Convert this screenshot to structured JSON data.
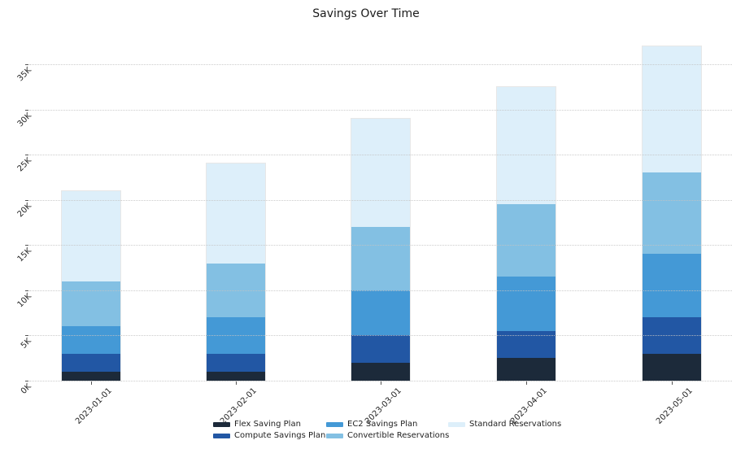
{
  "chart_data": {
    "type": "bar",
    "stacked": true,
    "title": "Savings Over Time",
    "categories": [
      "2023-01-01",
      "2023-02-01",
      "2023-03-01",
      "2023-04-01",
      "2023-05-01"
    ],
    "series": [
      {
        "name": "Flex Saving Plan",
        "color": "#1c2a3a",
        "values": [
          1000,
          1000,
          2000,
          2500,
          3000
        ]
      },
      {
        "name": "Compute Savings Plan",
        "color": "#2257a4",
        "values": [
          2000,
          2000,
          3000,
          3000,
          4000
        ]
      },
      {
        "name": "EC2 Savings Plan",
        "color": "#4499d6",
        "values": [
          3000,
          4000,
          5000,
          6000,
          7000
        ]
      },
      {
        "name": "Convertible Reservations",
        "color": "#83c0e3",
        "values": [
          5000,
          6000,
          7000,
          8000,
          9000
        ]
      },
      {
        "name": "Standard Reservations",
        "color": "#ddeffa",
        "values": [
          10000,
          11000,
          12000,
          13000,
          14000
        ]
      }
    ],
    "totals": [
      21000,
      24000,
      29000,
      32500,
      37000
    ],
    "yticks": [
      {
        "value": 0,
        "label": "0K"
      },
      {
        "value": 5000,
        "label": "5K"
      },
      {
        "value": 10000,
        "label": "10K"
      },
      {
        "value": 15000,
        "label": "15K"
      },
      {
        "value": 20000,
        "label": "20K"
      },
      {
        "value": 25000,
        "label": "25K"
      },
      {
        "value": 30000,
        "label": "30K"
      },
      {
        "value": 35000,
        "label": "35K"
      }
    ],
    "ylim": [
      0,
      38000
    ],
    "xlabel": "",
    "ylabel": "",
    "grid": "horizontal-dotted",
    "tick_rotation_deg": 45,
    "legend_position": "bottom",
    "legend_columns": 3,
    "legend_order": "column-major",
    "colors": {
      "background": "#ffffff",
      "grid": "#c3c3c3",
      "tick_text": "#262626",
      "title_text": "#1a1a1a"
    }
  }
}
